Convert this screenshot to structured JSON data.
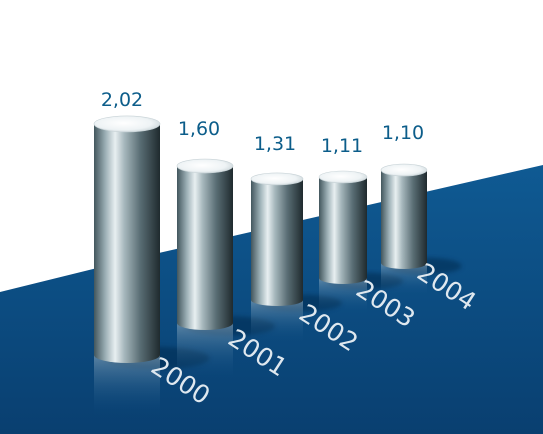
{
  "colors": {
    "background": "#ffffff",
    "floor": "#0d4f86",
    "floor_dark": "#083c6b",
    "value_text": "#0c5d8a",
    "year_text": "#dfe8ef",
    "bar_light": "#d7e0e4",
    "bar_mid": "#7f9299",
    "bar_dark": "#2c3a3f"
  },
  "chart_data": {
    "type": "bar",
    "style": "3d-cylinders",
    "categories": [
      "2000",
      "2001",
      "2002",
      "2003",
      "2004"
    ],
    "values": [
      2.02,
      1.6,
      1.31,
      1.11,
      1.1
    ],
    "value_labels": [
      "2,02",
      "1,60",
      "1,31",
      "1,11",
      "1,10"
    ],
    "title": "",
    "xlabel": "",
    "ylabel": "",
    "ylim": [
      0,
      2.2
    ],
    "grid": false,
    "legend": "none"
  }
}
